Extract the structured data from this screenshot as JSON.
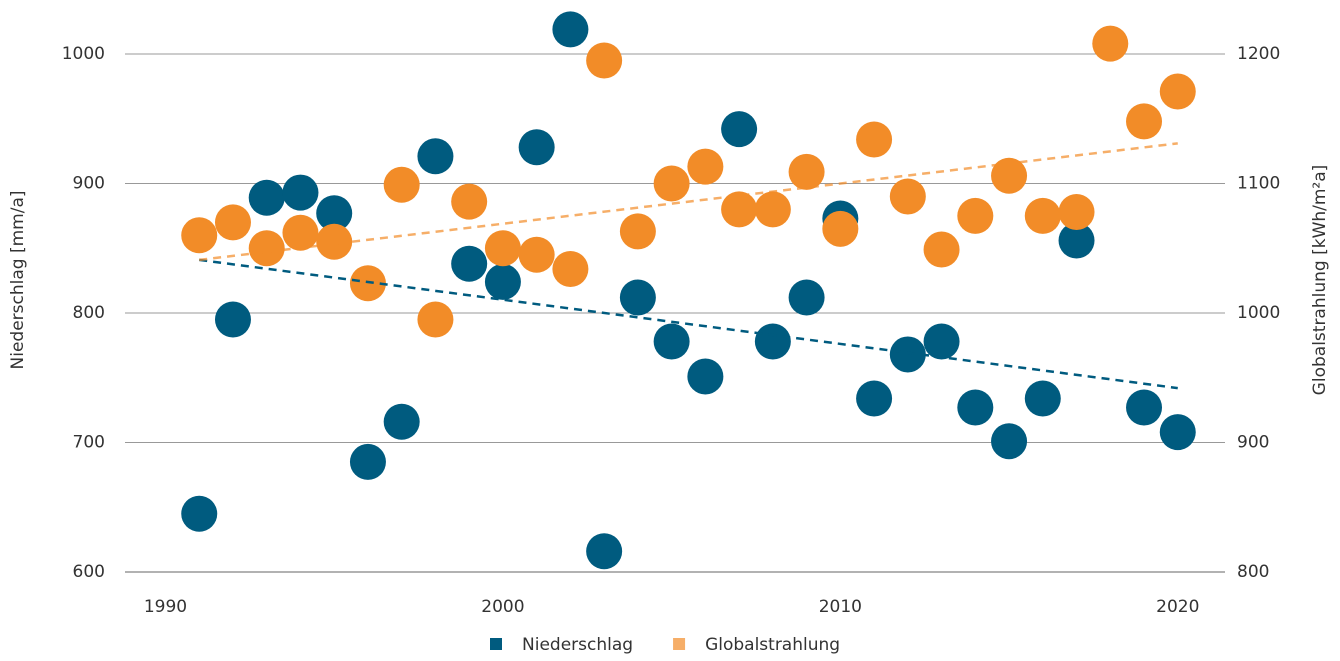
{
  "chart_data": {
    "type": "scatter",
    "ylabel": "Niederschlag [mm/a]",
    "y2label": "Globalstrahlung [kWh/m²a]",
    "xlim": [
      1988.8,
      2021.4
    ],
    "xticks": [
      1990,
      2000,
      2010,
      2020
    ],
    "ylim": [
      600,
      1000
    ],
    "yticks": [
      600,
      700,
      800,
      900,
      1000
    ],
    "y2lim": [
      800,
      1200
    ],
    "y2ticks": [
      800,
      900,
      1000,
      1100,
      1200
    ],
    "grid": true,
    "legend": "bottom",
    "series": [
      {
        "name": "Niederschlag",
        "color": "#005b7f",
        "x": [
          1991,
          1992,
          1993,
          1994,
          1995,
          1996,
          1997,
          1998,
          1999,
          2000,
          2001,
          2002,
          2003,
          2004,
          2005,
          2006,
          2007,
          2008,
          2009,
          2010,
          2011,
          2012,
          2013,
          2014,
          2015,
          2016,
          2017,
          2019,
          2020
        ],
        "values": [
          645,
          795,
          889,
          893,
          877,
          685,
          716,
          921,
          838,
          824,
          928,
          1019,
          616,
          812,
          778,
          751,
          942,
          778,
          812,
          873,
          734,
          768,
          778,
          727,
          701,
          734,
          856,
          727,
          708
        ],
        "trend": {
          "x": [
            1991,
            2020
          ],
          "values": [
            841,
            742
          ]
        }
      },
      {
        "name": "Globalstrahlung",
        "color": "#f28c28",
        "axis": "y2",
        "x": [
          1991,
          1992,
          1993,
          1994,
          1995,
          1996,
          1997,
          1998,
          1999,
          2000,
          2001,
          2002,
          2003,
          2004,
          2005,
          2006,
          2007,
          2008,
          2009,
          2010,
          2011,
          2012,
          2013,
          2014,
          2015,
          2016,
          2017,
          2018,
          2019,
          2020
        ],
        "values": [
          1060,
          1070,
          1050,
          1062,
          1055,
          1023,
          1099,
          995,
          1086,
          1050,
          1045,
          1034,
          1195,
          1063,
          1100,
          1113,
          1080,
          1080,
          1109,
          1065,
          1134,
          1090,
          1049,
          1075,
          1106,
          1075,
          1078,
          1208,
          1148,
          1171
        ],
        "trend": {
          "x": [
            1991,
            2020
          ],
          "values": [
            1041,
            1131
          ]
        }
      }
    ]
  }
}
